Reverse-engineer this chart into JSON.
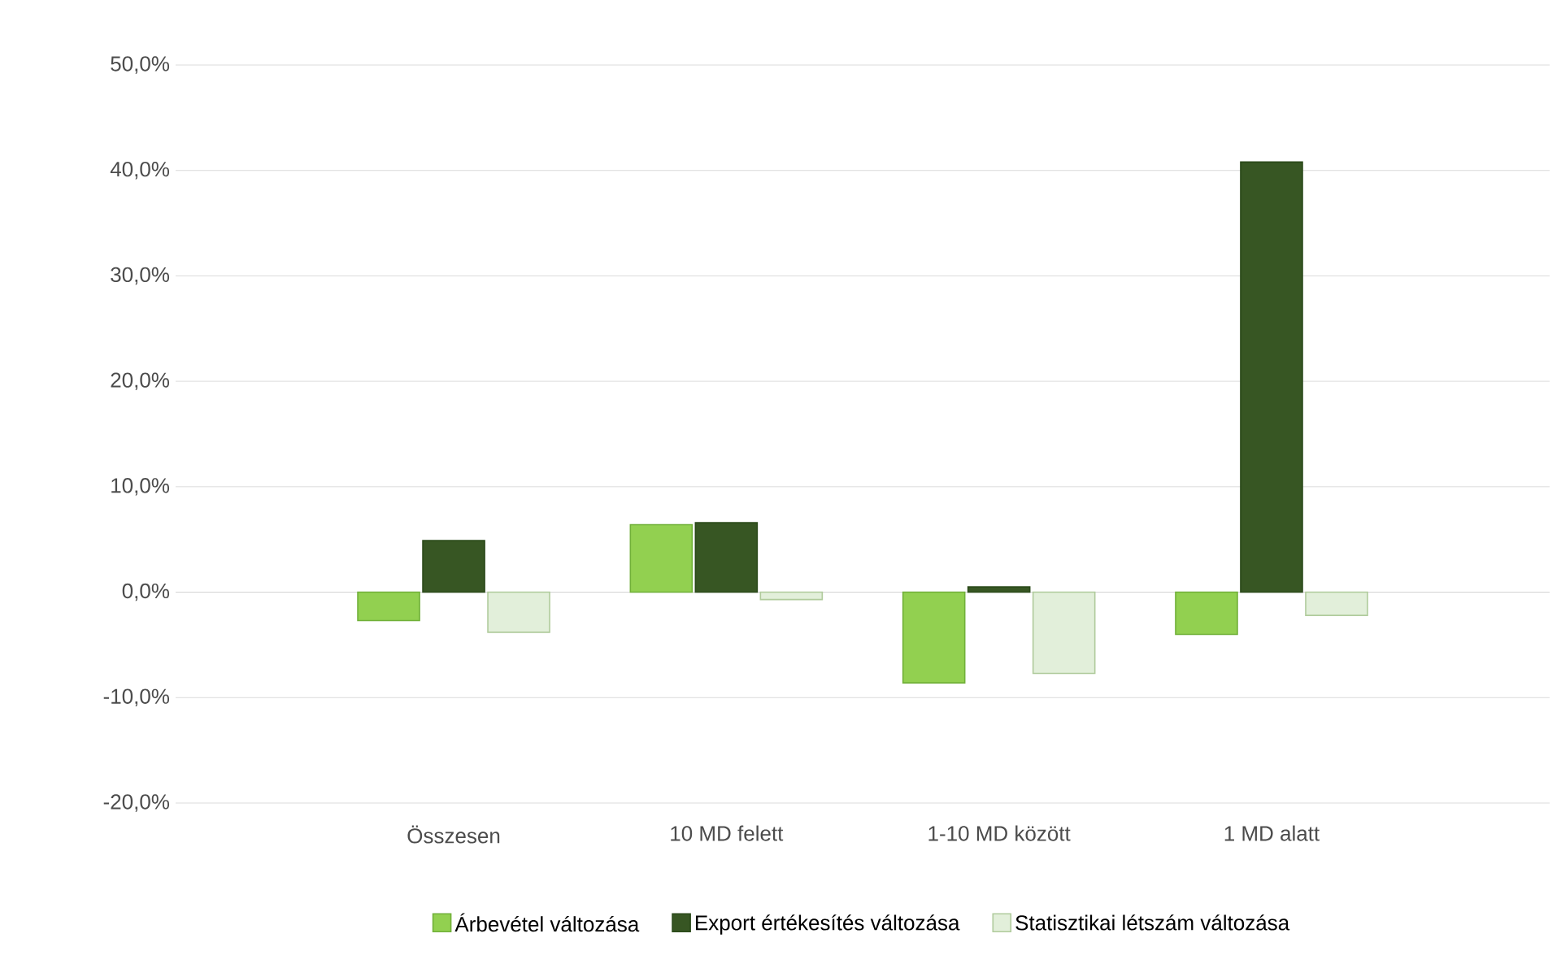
{
  "chart_data": {
    "type": "bar",
    "categories": [
      "Összesen",
      "10 MD felett",
      "1-10 MD között",
      "1 MD alatt"
    ],
    "series": [
      {
        "name": "Árbevétel változása",
        "color": "#92d050",
        "values": [
          -2.7,
          6.4,
          -8.6,
          -4.0
        ]
      },
      {
        "name": "Export értékesítés változása",
        "color": "#375623",
        "values": [
          4.9,
          6.6,
          0.5,
          40.8
        ]
      },
      {
        "name": "Statisztikai létszám változása",
        "color": "#e2efda",
        "values": [
          -3.8,
          -0.7,
          -7.7,
          -2.2
        ]
      }
    ],
    "ylim": [
      -20,
      50
    ],
    "yticks": [
      {
        "value": -20,
        "label": "-20,0%"
      },
      {
        "value": -10,
        "label": "-10,0%"
      },
      {
        "value": 0,
        "label": "0,0%"
      },
      {
        "value": 10,
        "label": "10,0%"
      },
      {
        "value": 20,
        "label": "20,0%"
      },
      {
        "value": 30,
        "label": "30,0%"
      },
      {
        "value": 40,
        "label": "40,0%"
      },
      {
        "value": 50,
        "label": "50,0%"
      }
    ],
    "grid": "y",
    "legend": "bottom"
  }
}
